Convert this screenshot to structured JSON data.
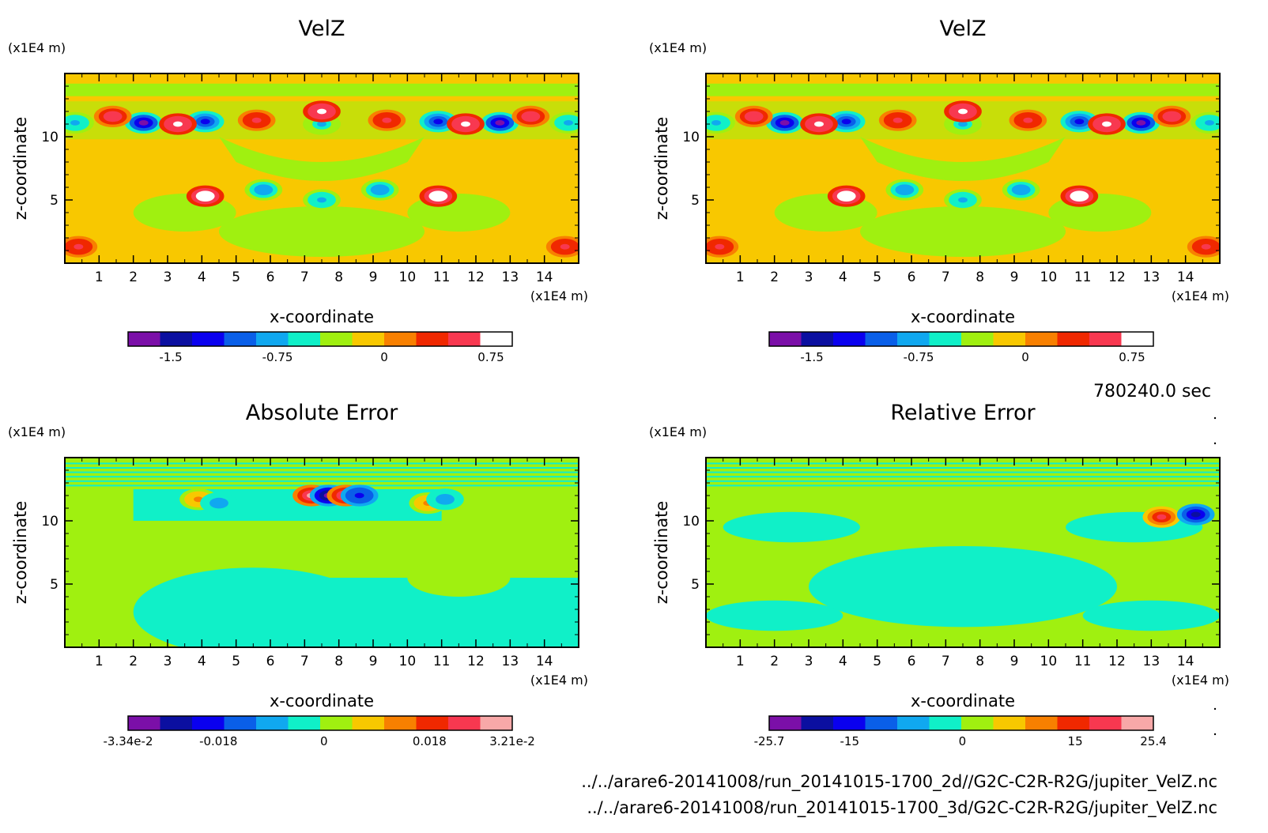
{
  "chart_data": [
    {
      "type": "heatmap",
      "title": "VelZ",
      "xlabel": "x-coordinate",
      "ylabel": "z-coordinate",
      "x_unit": "(x1E4 m)",
      "y_unit": "(x1E4 m)",
      "xlim": [
        0,
        15
      ],
      "ylim": [
        0,
        15
      ],
      "x_ticks": [
        "1",
        "2",
        "3",
        "4",
        "5",
        "6",
        "7",
        "8",
        "9",
        "10",
        "11",
        "12",
        "13",
        "14"
      ],
      "y_ticks": [
        "5",
        "10"
      ],
      "colorbar": {
        "colors": [
          "#7b0fa8",
          "#0b0fa0",
          "#0a00ef",
          "#0a5fe8",
          "#10a8f0",
          "#10f0c8",
          "#a0f010",
          "#f8c800",
          "#f88000",
          "#f02800",
          "#f83850",
          "#ffffff"
        ],
        "tick_labels": [
          "-1.5",
          "-0.75",
          "0",
          "0.75"
        ],
        "tick_values": [
          -1.5,
          -0.75,
          0,
          0.75
        ],
        "vmin": -1.8,
        "vmax": 0.9
      },
      "background": "#f8c800",
      "blobs": [
        {
          "x": 2.3,
          "z": 11.1,
          "v": -1.6
        },
        {
          "x": 4.1,
          "z": 11.2,
          "v": -1.3
        },
        {
          "x": 3.3,
          "z": 11.0,
          "v": 0.8
        },
        {
          "x": 1.4,
          "z": 11.6,
          "v": 0.6
        },
        {
          "x": 12.7,
          "z": 11.1,
          "v": -1.6
        },
        {
          "x": 10.9,
          "z": 11.2,
          "v": -1.3
        },
        {
          "x": 11.7,
          "z": 11.0,
          "v": 0.8
        },
        {
          "x": 13.6,
          "z": 11.6,
          "v": 0.6
        },
        {
          "x": 7.5,
          "z": 11.0,
          "v": -0.7
        },
        {
          "x": 7.5,
          "z": 12.0,
          "v": 0.8
        },
        {
          "x": 5.6,
          "z": 11.3,
          "v": 0.5
        },
        {
          "x": 9.4,
          "z": 11.3,
          "v": 0.5
        },
        {
          "x": 0.3,
          "z": 11.1,
          "v": -0.8
        },
        {
          "x": 14.7,
          "z": 11.1,
          "v": -0.8
        },
        {
          "x": 4.1,
          "z": 5.3,
          "v": 0.85
        },
        {
          "x": 10.9,
          "z": 5.3,
          "v": 0.85
        },
        {
          "x": 5.8,
          "z": 5.8,
          "v": -0.9
        },
        {
          "x": 9.2,
          "z": 5.8,
          "v": -0.9
        },
        {
          "x": 7.5,
          "z": 5.0,
          "v": -0.8
        },
        {
          "x": 0.4,
          "z": 1.3,
          "v": 0.5
        },
        {
          "x": 14.6,
          "z": 1.3,
          "v": 0.5
        }
      ]
    },
    {
      "type": "heatmap",
      "title": "VelZ",
      "xlabel": "x-coordinate",
      "ylabel": "z-coordinate",
      "x_unit": "(x1E4 m)",
      "y_unit": "(x1E4 m)",
      "xlim": [
        0,
        15
      ],
      "ylim": [
        0,
        15
      ],
      "x_ticks": [
        "1",
        "2",
        "3",
        "4",
        "5",
        "6",
        "7",
        "8",
        "9",
        "10",
        "11",
        "12",
        "13",
        "14"
      ],
      "y_ticks": [
        "5",
        "10"
      ],
      "colorbar": {
        "colors": [
          "#7b0fa8",
          "#0b0fa0",
          "#0a00ef",
          "#0a5fe8",
          "#10a8f0",
          "#10f0c8",
          "#a0f010",
          "#f8c800",
          "#f88000",
          "#f02800",
          "#f83850",
          "#ffffff"
        ],
        "tick_labels": [
          "-1.5",
          "-0.75",
          "0",
          "0.75"
        ],
        "tick_values": [
          -1.5,
          -0.75,
          0,
          0.75
        ],
        "vmin": -1.8,
        "vmax": 0.9
      },
      "background": "#f8c800",
      "blobs": [
        {
          "x": 2.3,
          "z": 11.1,
          "v": -1.6
        },
        {
          "x": 4.1,
          "z": 11.2,
          "v": -1.3
        },
        {
          "x": 3.3,
          "z": 11.0,
          "v": 0.8
        },
        {
          "x": 1.4,
          "z": 11.6,
          "v": 0.6
        },
        {
          "x": 12.7,
          "z": 11.1,
          "v": -1.6
        },
        {
          "x": 10.9,
          "z": 11.2,
          "v": -1.3
        },
        {
          "x": 11.7,
          "z": 11.0,
          "v": 0.8
        },
        {
          "x": 13.6,
          "z": 11.6,
          "v": 0.6
        },
        {
          "x": 7.5,
          "z": 11.0,
          "v": -0.7
        },
        {
          "x": 7.5,
          "z": 12.0,
          "v": 0.8
        },
        {
          "x": 5.6,
          "z": 11.3,
          "v": 0.5
        },
        {
          "x": 9.4,
          "z": 11.3,
          "v": 0.5
        },
        {
          "x": 0.3,
          "z": 11.1,
          "v": -0.8
        },
        {
          "x": 14.7,
          "z": 11.1,
          "v": -0.8
        },
        {
          "x": 4.1,
          "z": 5.3,
          "v": 0.85
        },
        {
          "x": 10.9,
          "z": 5.3,
          "v": 0.85
        },
        {
          "x": 5.8,
          "z": 5.8,
          "v": -0.9
        },
        {
          "x": 9.2,
          "z": 5.8,
          "v": -0.9
        },
        {
          "x": 7.5,
          "z": 5.0,
          "v": -0.8
        },
        {
          "x": 0.4,
          "z": 1.3,
          "v": 0.5
        },
        {
          "x": 14.6,
          "z": 1.3,
          "v": 0.5
        }
      ]
    },
    {
      "type": "heatmap",
      "title": "Absolute Error",
      "xlabel": "x-coordinate",
      "ylabel": "z-coordinate",
      "x_unit": "(x1E4 m)",
      "y_unit": "(x1E4 m)",
      "xlim": [
        0,
        15
      ],
      "ylim": [
        0,
        15
      ],
      "x_ticks": [
        "1",
        "2",
        "3",
        "4",
        "5",
        "6",
        "7",
        "8",
        "9",
        "10",
        "11",
        "12",
        "13",
        "14"
      ],
      "y_ticks": [
        "5",
        "10"
      ],
      "colorbar": {
        "colors": [
          "#7b0fa8",
          "#0b0fa0",
          "#0a00ef",
          "#0a5fe8",
          "#10a8f0",
          "#10f0c8",
          "#a0f010",
          "#f8c800",
          "#f88000",
          "#f02800",
          "#f83850",
          "#f8a8a8"
        ],
        "tick_labels": [
          "-3.34e-2",
          "-0.018",
          "0",
          "0.018",
          "3.21e-2"
        ],
        "tick_values": [
          -0.0334,
          -0.018,
          0,
          0.018,
          0.0321
        ],
        "vmin": -0.0334,
        "vmax": 0.0321
      },
      "background": "#a0f010",
      "blobs": [
        {
          "x": 7.2,
          "z": 12.0,
          "v": 0.03
        },
        {
          "x": 7.7,
          "z": 12.0,
          "v": -0.03
        },
        {
          "x": 8.2,
          "z": 12.0,
          "v": 0.03
        },
        {
          "x": 8.6,
          "z": 12.0,
          "v": -0.02
        },
        {
          "x": 3.9,
          "z": 11.7,
          "v": 0.012
        },
        {
          "x": 4.5,
          "z": 11.4,
          "v": -0.01
        },
        {
          "x": 10.6,
          "z": 11.4,
          "v": 0.012
        },
        {
          "x": 11.1,
          "z": 11.7,
          "v": -0.01
        }
      ]
    },
    {
      "type": "heatmap",
      "title": "Relative Error",
      "xlabel": "x-coordinate",
      "ylabel": "z-coordinate",
      "x_unit": "(x1E4 m)",
      "y_unit": "(x1E4 m)",
      "xlim": [
        0,
        15
      ],
      "ylim": [
        0,
        15
      ],
      "x_ticks": [
        "1",
        "2",
        "3",
        "4",
        "5",
        "6",
        "7",
        "8",
        "9",
        "10",
        "11",
        "12",
        "13",
        "14"
      ],
      "y_ticks": [
        "5",
        "10"
      ],
      "colorbar": {
        "colors": [
          "#7b0fa8",
          "#0b0fa0",
          "#0a00ef",
          "#0a5fe8",
          "#10a8f0",
          "#10f0c8",
          "#a0f010",
          "#f8c800",
          "#f88000",
          "#f02800",
          "#f83850",
          "#f8a8a8"
        ],
        "tick_labels": [
          "-25.7",
          "-15",
          "0",
          "15",
          "25.4"
        ],
        "tick_values": [
          -25.7,
          -15,
          0,
          15,
          25.4
        ],
        "vmin": -25.7,
        "vmax": 25.4
      },
      "background": "#a0f010",
      "blobs": [
        {
          "x": 13.3,
          "z": 10.3,
          "v": 20
        },
        {
          "x": 14.3,
          "z": 10.5,
          "v": -18
        }
      ]
    }
  ],
  "timestamp": "780240.0 sec",
  "files": [
    "../../arare6-20141008/run_20141015-1700_2d//G2C-C2R-R2G/jupiter_VelZ.nc",
    "../../arare6-20141008/run_20141015-1700_3d/G2C-C2R-R2G/jupiter_VelZ.nc"
  ]
}
